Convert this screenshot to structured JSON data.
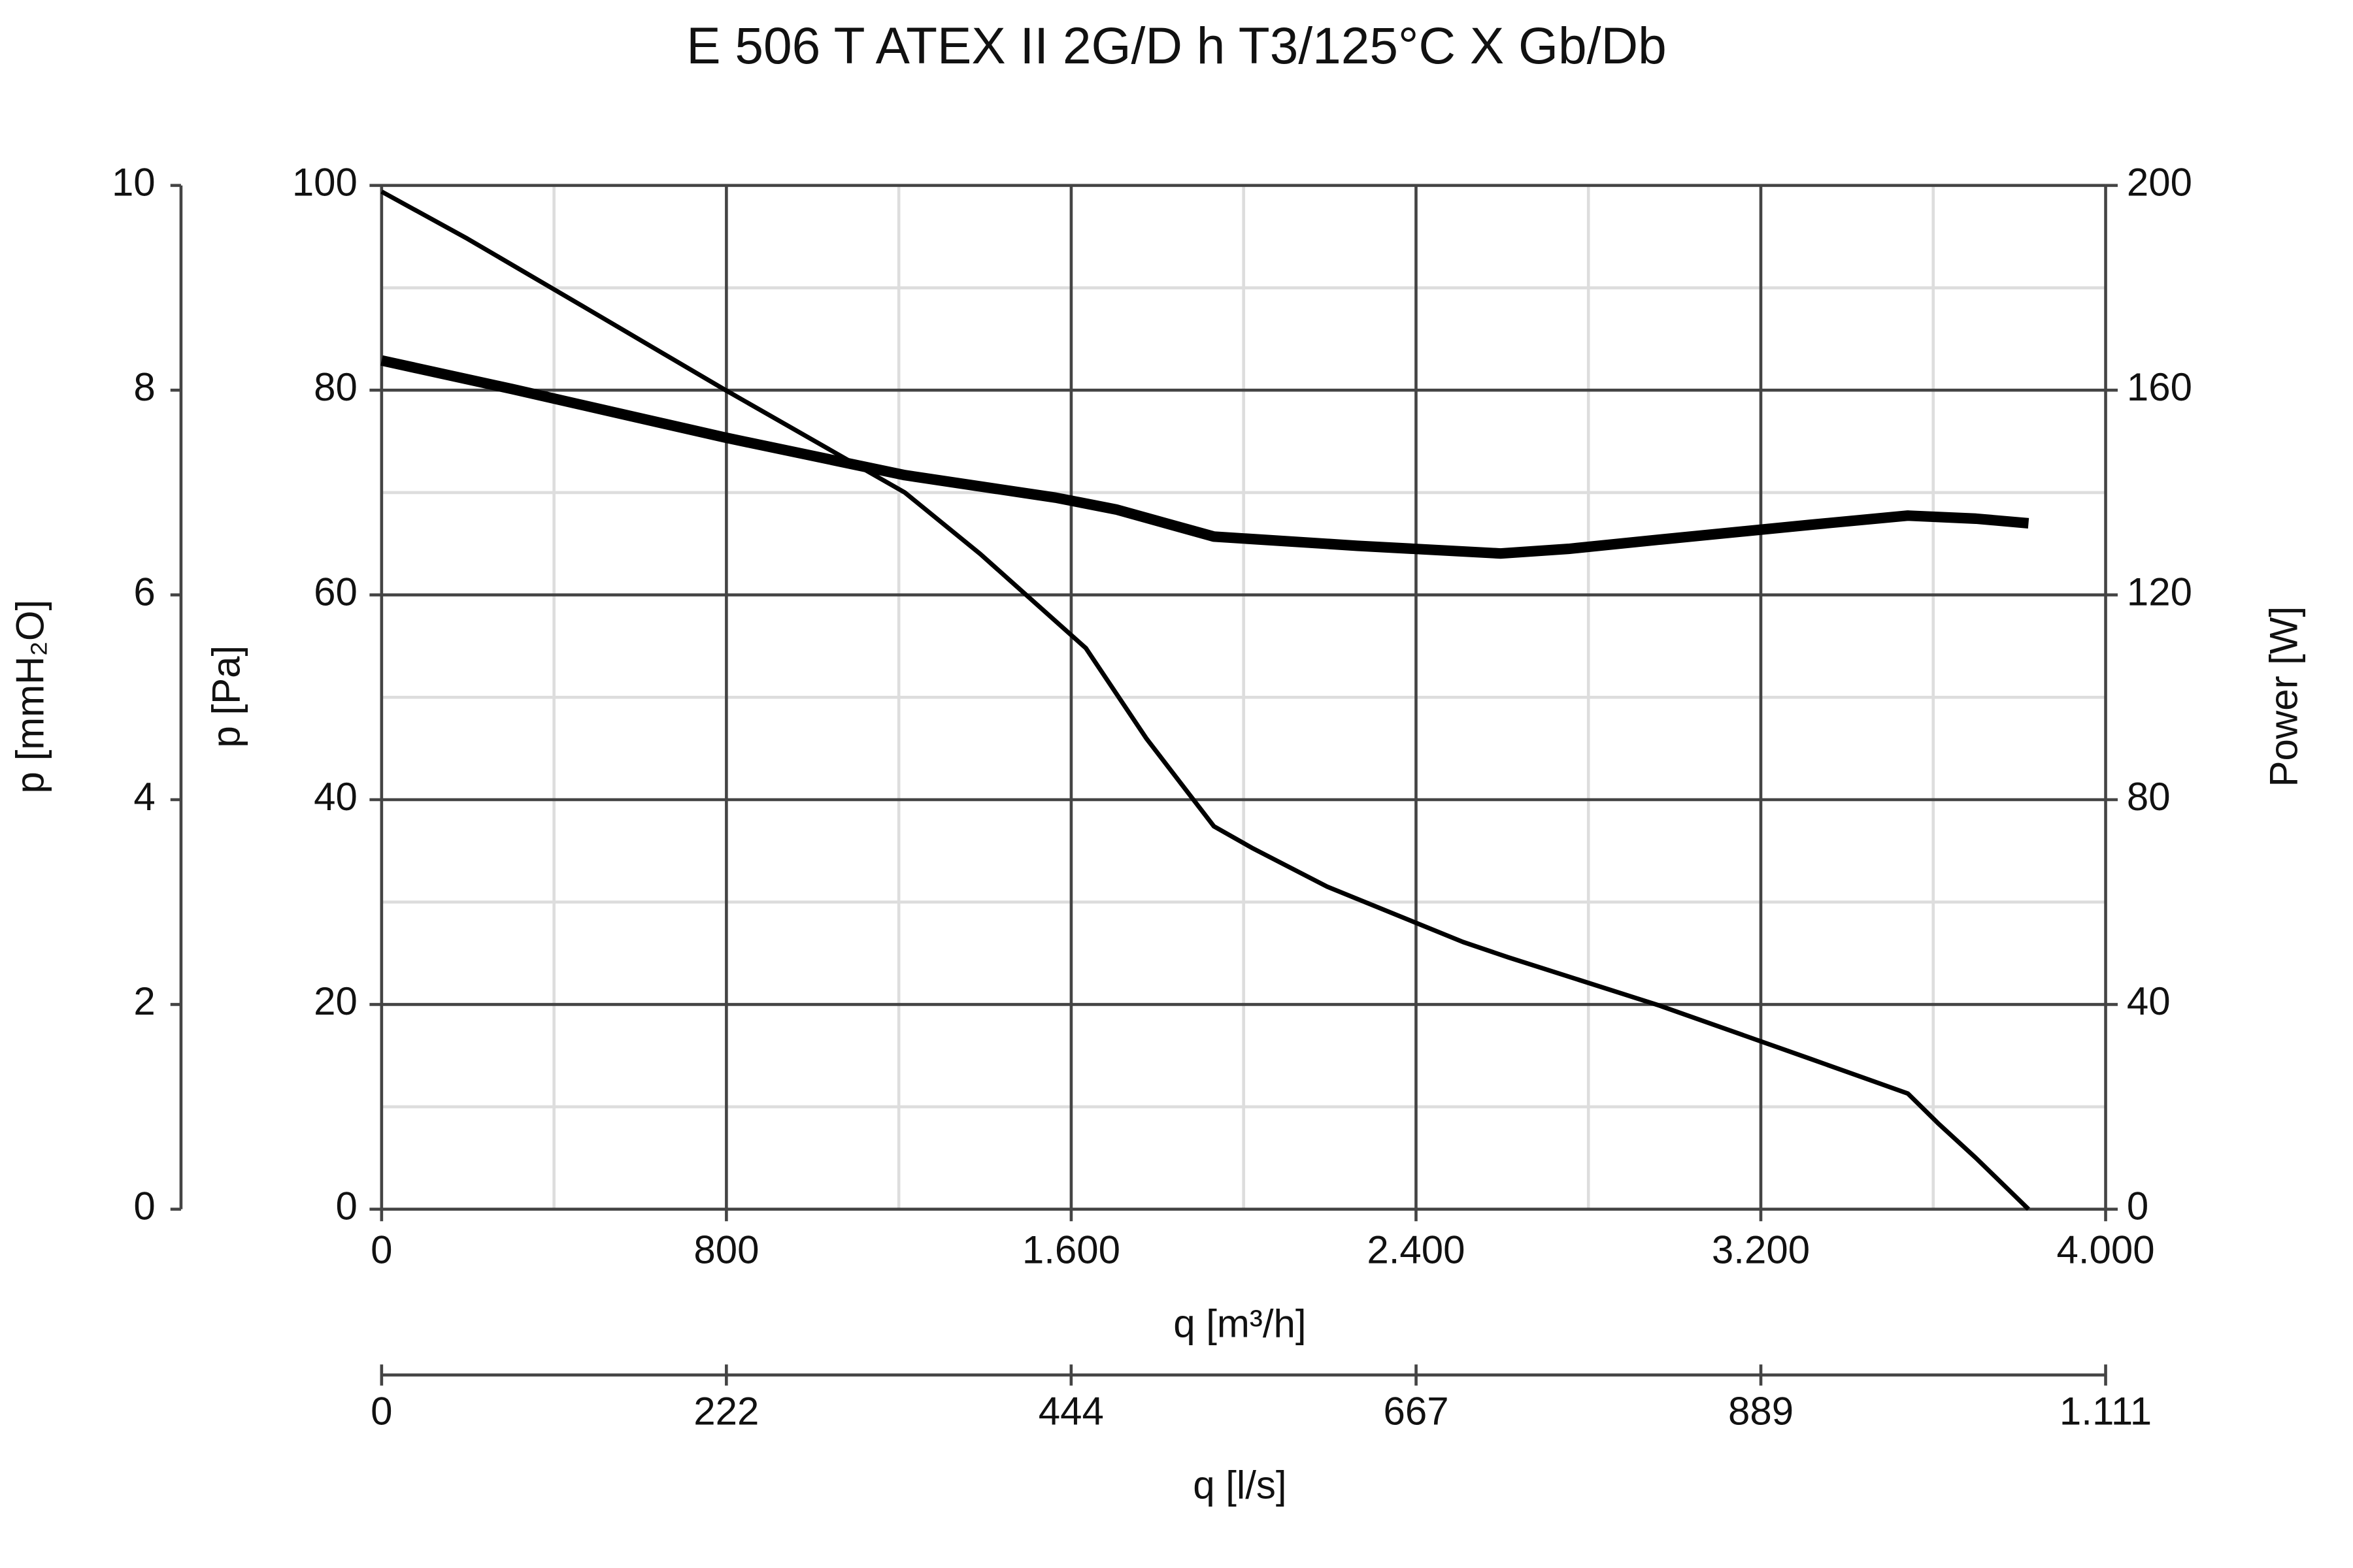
{
  "chart_data": {
    "type": "line",
    "title": "E 506 T ATEX II 2G/D h T3/125°C X Gb/Db",
    "x_label": "q [m³/h]",
    "x2_label": "q [l/s]",
    "y_label": "p [Pa]",
    "y3_label": "p [mmH₂O]",
    "y2_label": "Power [W]",
    "xlim": [
      0,
      4000
    ],
    "xticks": [
      0,
      800,
      {
        "value": 1600,
        "label": "1.600"
      },
      {
        "value": 2400,
        "label": "2.400"
      },
      {
        "value": 3200,
        "label": "3.200"
      },
      {
        "value": 4000,
        "label": "4.000"
      }
    ],
    "xminor": [
      400,
      1200,
      2000,
      2800,
      3600
    ],
    "x2lim": [
      0,
      1111.1
    ],
    "x2ticks": [
      0,
      {
        "value": 222.2,
        "label": "222"
      },
      {
        "value": 444.4,
        "label": "444"
      },
      {
        "value": 666.7,
        "label": "667"
      },
      {
        "value": 888.9,
        "label": "889"
      },
      {
        "value": 1111.1,
        "label": "1.111"
      }
    ],
    "ylim": [
      0,
      100
    ],
    "yticks": [
      0,
      20,
      40,
      60,
      80,
      100
    ],
    "yminor": [
      10,
      30,
      50,
      70,
      90
    ],
    "y3lim": [
      0,
      10
    ],
    "y3ticks": [
      0,
      2,
      4,
      6,
      8,
      10
    ],
    "y2lim": [
      0,
      200
    ],
    "y2ticks": [
      0,
      40,
      80,
      120,
      160,
      200
    ],
    "grid": true,
    "series": [
      {
        "color": "#000000",
        "width": 3,
        "x": [
          0,
          199,
          479,
          794,
          1214,
          1389,
          1634,
          1774,
          1931,
          2019,
          2194,
          2509,
          2614,
          2964,
          3314,
          3541,
          3611,
          3699,
          3821
        ],
        "values": [
          99.4,
          94.8,
          87.9,
          80.1,
          70,
          64,
          54.8,
          46,
          37.4,
          35.3,
          31.5,
          26.1,
          24.6,
          19.9,
          14.7,
          11.3,
          8.4,
          5,
          0
        ]
      },
      {
        "color": "#000000",
        "width": 7,
        "axis": "y2",
        "x": [
          0,
          304,
          794,
          1214,
          1564,
          1704,
          1931,
          2264,
          2596,
          2754,
          2964,
          3314,
          3541,
          3699,
          3821
        ],
        "values": [
          165.8,
          160.2,
          150.8,
          143.4,
          139,
          136.7,
          131.4,
          129.6,
          128.1,
          129,
          130.8,
          133.7,
          135.5,
          134.9,
          134
        ]
      }
    ]
  }
}
